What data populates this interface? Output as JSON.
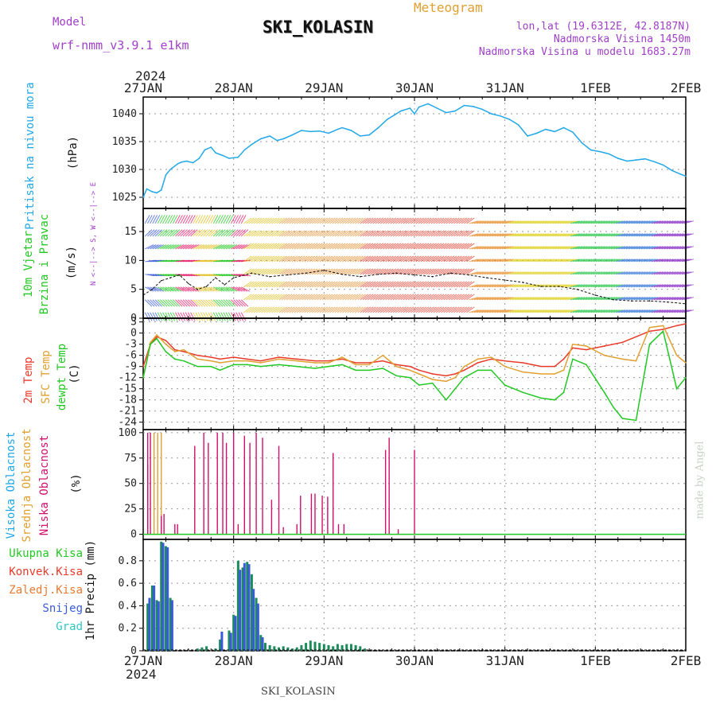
{
  "header": {
    "model_label": "Model",
    "model_name": "wrf-nmm_v3.9.1 e1km",
    "title": "SKI_KOLASIN",
    "meteogram_label": "Meteogram",
    "lonlat": "lon,lat (19.6312E, 42.8187N)",
    "altitude": "Nadmorska Visina 1450m",
    "model_altitude": "Nadmorska Visina u modelu 1683.27m",
    "footer_station": "SKI_KOLASIN",
    "credit": "made by Angel",
    "year_top": "2024",
    "year_bottom": "2024"
  },
  "colors": {
    "pressure": "#22a8e8",
    "temp2m": "#e83a2a",
    "sfc": "#e0a030",
    "dew": "#22c822",
    "low_cloud": "#d0106e",
    "mid_cloud": "#e0a030",
    "high_cloud": "#3a5ad8",
    "precip_total": "#1b8c5a",
    "snow": "#3a5ad8",
    "purple": "#a040c8"
  },
  "dates": [
    "27JAN",
    "28JAN",
    "29JAN",
    "30JAN",
    "31JAN",
    "1FEB",
    "2FEB"
  ],
  "chart_data": [
    {
      "type": "line",
      "panel": "pressure",
      "ylabel_left": "Pritisak na nivou mora",
      "ylabel_unit": "(hPa)",
      "yticks": [
        1025,
        1030,
        1035,
        1040
      ],
      "ylim": [
        1023,
        1043
      ],
      "xlim_days": [
        0,
        6
      ],
      "series": [
        {
          "name": "Pritisak na nivou mora",
          "x": [
            0,
            0.04,
            0.1,
            0.15,
            0.2,
            0.25,
            0.3,
            0.38,
            0.42,
            0.48,
            0.55,
            0.62,
            0.68,
            0.75,
            0.8,
            0.88,
            0.95,
            1.05,
            1.12,
            1.2,
            1.3,
            1.4,
            1.48,
            1.55,
            1.65,
            1.75,
            1.85,
            1.95,
            2.05,
            2.15,
            2.2,
            2.3,
            2.4,
            2.5,
            2.6,
            2.7,
            2.8,
            2.85,
            2.95,
            3.0,
            3.05,
            3.15,
            3.25,
            3.35,
            3.45,
            3.55,
            3.65,
            3.75,
            3.85,
            3.95,
            4.05,
            4.15,
            4.25,
            4.35,
            4.45,
            4.55,
            4.65,
            4.75,
            4.85,
            4.95,
            5.05,
            5.15,
            5.25,
            5.35,
            5.45,
            5.55,
            5.65,
            5.75,
            5.85,
            5.95,
            6.0
          ],
          "y": [
            1025,
            1026.5,
            1026,
            1025.8,
            1026.3,
            1029,
            1030,
            1031,
            1031.3,
            1031.5,
            1031.2,
            1032,
            1033.5,
            1034,
            1033,
            1032.5,
            1032,
            1032.2,
            1033.5,
            1034.5,
            1035.5,
            1036,
            1035.2,
            1035.5,
            1036.2,
            1037,
            1036.8,
            1036.9,
            1036.5,
            1037.2,
            1037.5,
            1037,
            1036,
            1036.2,
            1037.5,
            1039,
            1040,
            1040.5,
            1041,
            1040,
            1041.2,
            1041.8,
            1041,
            1040.2,
            1040.5,
            1041.5,
            1041.3,
            1040.8,
            1040,
            1039.6,
            1039,
            1038,
            1036,
            1036.5,
            1037.2,
            1036.8,
            1037.5,
            1036.7,
            1034.8,
            1033.5,
            1033.2,
            1032.8,
            1032,
            1031.5,
            1031.7,
            1031.9,
            1031.4,
            1030.8,
            1029.8,
            1029.1,
            1028.8
          ]
        }
      ]
    },
    {
      "type": "line",
      "panel": "wind",
      "ylabel_left": "10m Vjetar",
      "ylabel_left2": "Brzina i Pravac",
      "ylabel_unit": "(m/s)",
      "direction_legend": "N <--|--> S, W <--|--> E",
      "yticks": [
        0,
        5,
        10,
        15
      ],
      "ylim": [
        0,
        19
      ],
      "xlim_days": [
        0,
        6
      ],
      "series": [
        {
          "name": "10m Vjetar",
          "x": [
            0,
            0.1,
            0.2,
            0.3,
            0.4,
            0.5,
            0.6,
            0.7,
            0.8,
            0.9,
            1.0,
            1.2,
            1.4,
            1.6,
            1.8,
            2.0,
            2.2,
            2.4,
            2.6,
            2.8,
            3.0,
            3.2,
            3.4,
            3.6,
            3.8,
            4.0,
            4.2,
            4.4,
            4.6,
            4.8,
            5.0,
            5.2,
            5.4,
            5.6,
            5.8,
            6.0
          ],
          "y": [
            4,
            5,
            6.5,
            7,
            7.5,
            6,
            5,
            5.5,
            7,
            5.8,
            7,
            7.8,
            7.2,
            7.5,
            7.8,
            8.3,
            7.6,
            7.2,
            7.6,
            7.8,
            7.5,
            7.2,
            7.8,
            7.5,
            7,
            6.6,
            6.2,
            5.5,
            5.5,
            5,
            4,
            3.2,
            3,
            3,
            2.8,
            2.5
          ]
        }
      ]
    },
    {
      "type": "line",
      "panel": "temperature",
      "ylabel_left": "2m Temp",
      "ylabel_left2": "SFC Temp",
      "ylabel_left3": "dewpt Temp",
      "ylabel_unit": "(C)",
      "yticks": [
        3,
        0,
        -3,
        -6,
        -9,
        -12,
        -15,
        -18,
        -21,
        -24
      ],
      "ylim": [
        -26,
        4
      ],
      "xlim_days": [
        0,
        6
      ],
      "series": [
        {
          "name": "2m Temp",
          "x": [
            0,
            0.08,
            0.15,
            0.25,
            0.35,
            0.45,
            0.6,
            0.75,
            0.85,
            1.0,
            1.15,
            1.3,
            1.5,
            1.7,
            1.9,
            2.05,
            2.2,
            2.35,
            2.5,
            2.65,
            2.8,
            2.95,
            3.05,
            3.2,
            3.35,
            3.45,
            3.55,
            3.7,
            3.85,
            4.0,
            4.2,
            4.4,
            4.55,
            4.65,
            4.75,
            4.9,
            5.1,
            5.3,
            5.45,
            5.6,
            5.75,
            5.9,
            6.0
          ],
          "y": [
            -9,
            -3,
            -1,
            -2,
            -4.5,
            -5,
            -6,
            -6.5,
            -7,
            -6.5,
            -7,
            -7.5,
            -6.5,
            -7,
            -7.5,
            -7.5,
            -7,
            -8,
            -8,
            -7.5,
            -8.5,
            -9,
            -10,
            -11,
            -11.5,
            -11,
            -10,
            -8,
            -7,
            -7.5,
            -8,
            -9,
            -9,
            -7,
            -4,
            -4.5,
            -3.5,
            -2.5,
            -1,
            0.5,
            1,
            2,
            2.5
          ]
        },
        {
          "name": "SFC Temp",
          "x": [
            0,
            0.08,
            0.15,
            0.25,
            0.35,
            0.45,
            0.6,
            0.75,
            0.85,
            1.0,
            1.15,
            1.3,
            1.5,
            1.7,
            1.9,
            2.05,
            2.2,
            2.35,
            2.5,
            2.65,
            2.8,
            2.95,
            3.05,
            3.2,
            3.35,
            3.45,
            3.55,
            3.7,
            3.85,
            4.0,
            4.2,
            4.4,
            4.55,
            4.65,
            4.75,
            4.9,
            5.1,
            5.3,
            5.45,
            5.6,
            5.75,
            5.9,
            6.0
          ],
          "y": [
            -12,
            -2.5,
            -0.5,
            -3,
            -5,
            -4.5,
            -7,
            -7.5,
            -8,
            -7.5,
            -7.5,
            -8,
            -7,
            -7.5,
            -8,
            -8,
            -6.5,
            -8.5,
            -8.5,
            -6,
            -9,
            -10,
            -11,
            -12.5,
            -13,
            -12,
            -9,
            -7,
            -6.5,
            -9,
            -10.5,
            -11,
            -11,
            -10,
            -3,
            -3.5,
            -6,
            -7,
            -7.5,
            1.5,
            2,
            -6,
            -8
          ]
        },
        {
          "name": "dewpt Temp",
          "x": [
            0,
            0.08,
            0.15,
            0.25,
            0.35,
            0.45,
            0.6,
            0.75,
            0.85,
            1.0,
            1.15,
            1.3,
            1.5,
            1.7,
            1.9,
            2.05,
            2.2,
            2.35,
            2.5,
            2.65,
            2.8,
            2.95,
            3.05,
            3.2,
            3.35,
            3.45,
            3.55,
            3.7,
            3.85,
            4.0,
            4.2,
            4.4,
            4.55,
            4.65,
            4.75,
            4.9,
            5.1,
            5.2,
            5.3,
            5.45,
            5.6,
            5.75,
            5.9,
            6.0
          ],
          "y": [
            -12,
            -3,
            -1.5,
            -5,
            -7,
            -7.5,
            -9,
            -9,
            -10,
            -8.5,
            -8.5,
            -9,
            -8.5,
            -9,
            -9.5,
            -9,
            -8.5,
            -10,
            -10,
            -9.5,
            -11.5,
            -12,
            -14,
            -13.5,
            -18,
            -15,
            -12,
            -10,
            -10,
            -14,
            -16,
            -17.5,
            -18,
            -16,
            -7,
            -8.5,
            -16,
            -20,
            -23,
            -23.5,
            -3,
            0.5,
            -15,
            -12
          ]
        }
      ]
    },
    {
      "type": "bar",
      "panel": "cloud",
      "ylabel_left": "Visoka Oblacnost",
      "ylabel_left2": "Srednja Oblacnost",
      "ylabel_left3": "Niska Oblacnost",
      "ylabel_unit": "(%)",
      "yticks": [
        0,
        25,
        50,
        75,
        100
      ],
      "ylim": [
        -5,
        103
      ],
      "xlim_days": [
        0,
        6
      ],
      "series": [
        {
          "name": "Visoka Oblacnost",
          "x": [
            0.05
          ],
          "y": [
            68
          ]
        },
        {
          "name": "Srednja Oblacnost",
          "x": [
            0.12,
            0.16,
            0.2
          ],
          "y": [
            100,
            100,
            100
          ]
        },
        {
          "name": "Niska Oblacnost",
          "x": [
            0.05,
            0.08,
            0.2,
            0.23,
            0.35,
            0.38,
            0.57,
            0.67,
            0.72,
            0.82,
            0.88,
            0.92,
            1.0,
            1.05,
            1.12,
            1.18,
            1.25,
            1.32,
            1.42,
            1.5,
            1.55,
            1.7,
            1.74,
            1.86,
            1.9,
            1.98,
            2.04,
            2.1,
            2.16,
            2.22,
            2.68,
            2.72,
            2.82,
            3.0
          ],
          "y": [
            100,
            100,
            18,
            20,
            10,
            10,
            87,
            100,
            90,
            100,
            100,
            90,
            100,
            10,
            97,
            90,
            100,
            95,
            34,
            87,
            7,
            10,
            38,
            40,
            40,
            38,
            37,
            80,
            10,
            10,
            83,
            95,
            5,
            83
          ]
        }
      ]
    },
    {
      "type": "bar",
      "panel": "precip",
      "ylabel_unit": "1hr Precip (mm)",
      "legend": [
        "Ukupna Kisa",
        "Konvek.Kisa",
        "Zaledj.Kisa",
        "Snijeg",
        "Grad"
      ],
      "yticks": [
        0,
        0.2,
        0.4,
        0.6,
        0.8
      ],
      "ylim": [
        0,
        0.99
      ],
      "xlim_days": [
        0,
        6
      ],
      "series": [
        {
          "name": "Ukupna Kisa",
          "x": [
            0.05,
            0.1,
            0.15,
            0.2,
            0.25,
            0.3,
            0.6,
            0.65,
            0.7,
            0.8,
            0.85,
            0.95,
            1.0,
            1.05,
            1.1,
            1.15,
            1.2,
            1.25,
            1.3,
            1.35,
            1.4,
            1.45,
            1.5,
            1.55,
            1.6,
            1.65,
            1.7,
            1.75,
            1.8,
            1.85,
            1.9,
            1.95,
            2.0,
            2.05,
            2.1,
            2.15,
            2.2,
            2.25,
            2.3,
            2.35,
            2.4,
            2.45
          ],
          "y": [
            0.42,
            0.58,
            0.45,
            0.97,
            0.93,
            0.47,
            0.02,
            0.03,
            0.04,
            0.02,
            0.1,
            0.18,
            0.32,
            0.8,
            0.74,
            0.79,
            0.68,
            0.47,
            0.14,
            0.07,
            0.05,
            0.04,
            0.03,
            0.04,
            0.03,
            0.02,
            0.03,
            0.05,
            0.07,
            0.09,
            0.08,
            0.07,
            0.06,
            0.05,
            0.04,
            0.06,
            0.05,
            0.06,
            0.06,
            0.05,
            0.04,
            0.02
          ]
        },
        {
          "name": "Snijeg",
          "x": [
            0.07,
            0.12,
            0.17,
            0.22,
            0.27,
            0.32,
            0.87,
            0.97,
            1.02,
            1.07,
            1.12,
            1.17,
            1.22,
            1.27,
            1.32
          ],
          "y": [
            0.47,
            0.58,
            0.44,
            0.96,
            0.92,
            0.45,
            0.17,
            0.16,
            0.31,
            0.72,
            0.78,
            0.77,
            0.55,
            0.42,
            0.12
          ]
        }
      ]
    }
  ]
}
